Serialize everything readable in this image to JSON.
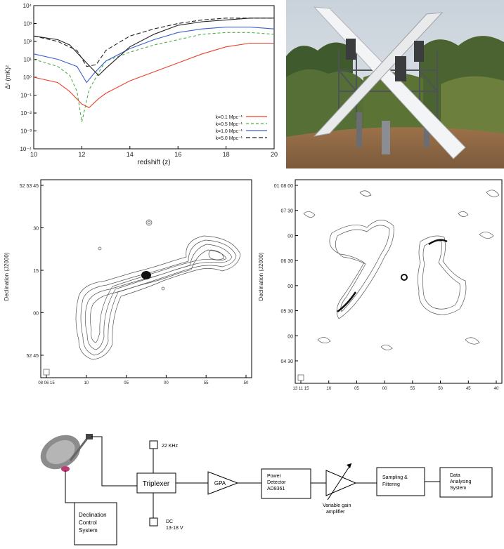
{
  "chart_data": {
    "type": "line",
    "title": "",
    "xlabel": "redshift (z)",
    "ylabel": "Δ² (mK)²",
    "xlim": [
      10,
      20
    ],
    "ylim_log10": [
      -4,
      4
    ],
    "x_ticks": [
      "10",
      "12",
      "14",
      "16",
      "18",
      "20"
    ],
    "y_ticks": [
      "10⁻⁴",
      "10⁻³",
      "10⁻²",
      "10⁻¹",
      "10⁰",
      "10¹",
      "10²",
      "10³",
      "10⁴"
    ],
    "legend_position": "bottom-right",
    "series": [
      {
        "name": "k=0.1 Mpc⁻¹",
        "color": "#e8402a",
        "dash": "",
        "x": [
          10,
          11,
          11.5,
          12,
          12.3,
          12.7,
          13,
          14,
          15,
          16,
          17,
          18,
          19,
          20
        ],
        "logy": [
          0.0,
          -0.3,
          -0.8,
          -1.5,
          -1.7,
          -1.2,
          -0.9,
          -0.2,
          0.3,
          0.8,
          1.3,
          1.7,
          1.9,
          1.9
        ]
      },
      {
        "name": "k=0.5 Mpc⁻¹",
        "color": "#4cae4c",
        "dash": "4,3",
        "x": [
          10,
          11,
          11.5,
          11.8,
          12,
          12.3,
          12.8,
          13,
          14,
          15,
          16,
          17,
          18,
          19,
          20
        ],
        "logy": [
          1.0,
          0.6,
          0.1,
          -0.8,
          -2.5,
          -0.7,
          0.5,
          0.9,
          1.4,
          1.8,
          2.1,
          2.4,
          2.5,
          2.5,
          2.4
        ]
      },
      {
        "name": "k=1.0 Mpc⁻¹",
        "color": "#3a5fcd",
        "dash": "",
        "x": [
          10,
          11,
          11.8,
          12.2,
          12.5,
          13,
          14,
          15,
          16,
          17,
          18,
          19,
          20
        ],
        "logy": [
          1.3,
          1.0,
          0.6,
          -0.3,
          0.2,
          0.9,
          1.6,
          2.1,
          2.5,
          2.7,
          2.8,
          2.8,
          2.7
        ]
      },
      {
        "name": "k=5.0 Mpc⁻¹",
        "color": "#222222",
        "dash": "6,3",
        "x": [
          10,
          11,
          11.8,
          12.2,
          12.6,
          13,
          14,
          15,
          16,
          17,
          18,
          19,
          20
        ],
        "logy": [
          2.3,
          2.0,
          1.5,
          0.6,
          0.7,
          1.5,
          2.3,
          2.7,
          3.0,
          3.2,
          3.3,
          3.3,
          3.3
        ]
      },
      {
        "name": "",
        "color": "#222222",
        "dash": "",
        "x": [
          10,
          11,
          11.5,
          12.2,
          12.7,
          13,
          14,
          15,
          16,
          17,
          18,
          19,
          20
        ],
        "logy": [
          2.3,
          2.1,
          1.8,
          0.8,
          0.1,
          0.5,
          1.7,
          2.4,
          2.9,
          3.1,
          3.2,
          3.3,
          3.3
        ]
      }
    ]
  },
  "radio_left": {
    "ylabel": "Declination (J2000)",
    "y_ticks": [
      "52 53 45",
      "30",
      "15",
      "00",
      "52 45"
    ],
    "x_ticks": [
      "08 06 15",
      "10",
      "05",
      "00",
      "55",
      "50"
    ]
  },
  "radio_right": {
    "ylabel": "Declination (J2000)",
    "y_ticks": [
      "01 08 00",
      "07 30",
      "00",
      "06 30",
      "00",
      "05 30",
      "00",
      "04 30"
    ],
    "x_ticks": [
      "13 11 15",
      "10",
      "05",
      "00",
      "55",
      "50",
      "45",
      "40"
    ]
  },
  "block_diagram": {
    "lnb_22khz": "22 KHz",
    "triplexer": "Triplexer",
    "dc_label_1": "DC",
    "dc_label_2": "13-18 V",
    "gpa": "GPA",
    "power_detector_1": "Power",
    "power_detector_2": "Detector",
    "power_detector_3": "AD8361",
    "vga_1": "Variable gain",
    "vga_2": "amplifier",
    "sampling_1": "Sampling &",
    "sampling_2": "Filtering",
    "data_1": "Data",
    "data_2": "Analysing",
    "data_3": "System",
    "decl_1": "Declination",
    "decl_2": "Control",
    "decl_3": "System"
  }
}
